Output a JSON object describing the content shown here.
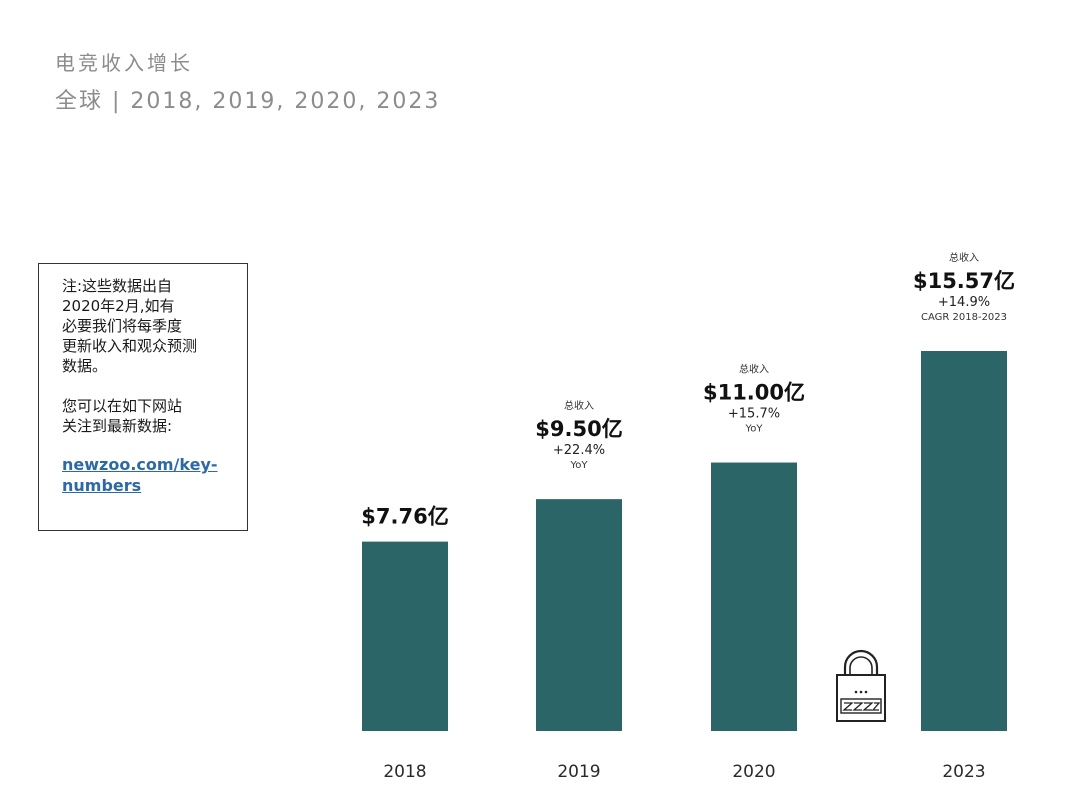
{
  "header": {
    "title": "电竞收入增长",
    "subtitle": "全球 | 2018, 2019, 2020, 2023"
  },
  "note": {
    "text": "注:这些数据出自\n2020年2月,如有\n必要我们将每季度\n更新收入和观众预测\n数据。\n\n您可以在如下网站\n关注到最新数据:",
    "link_text": "newzoo.com/key-\nnumbers"
  },
  "icons": {
    "lock": "padlock-icon"
  },
  "colors": {
    "bar": "#2c6567",
    "link": "#2d6aa5",
    "muted_text": "#8c8c8c"
  },
  "chart_data": {
    "type": "bar",
    "categories": [
      "2018",
      "2019",
      "2020",
      "2023"
    ],
    "values": [
      7.76,
      9.5,
      11.0,
      15.57
    ],
    "unit": "亿美元",
    "value_labels": [
      "$7.76亿",
      "$9.50亿",
      "$11.00亿",
      "$15.57亿"
    ],
    "top_labels": [
      "",
      "总收入",
      "总收入",
      "总收入"
    ],
    "growth_labels": [
      "",
      "+22.4%",
      "+15.7%",
      "+14.9%"
    ],
    "growth_basis": [
      "",
      "YoY",
      "YoY",
      "CAGR 2018-2023"
    ],
    "title": "电竞收入增长",
    "xlabel": "",
    "ylabel": "",
    "ylim": [
      0,
      15.57
    ],
    "grid": false,
    "legend": "none",
    "gap_marker_between": [
      "2020",
      "2023"
    ]
  }
}
